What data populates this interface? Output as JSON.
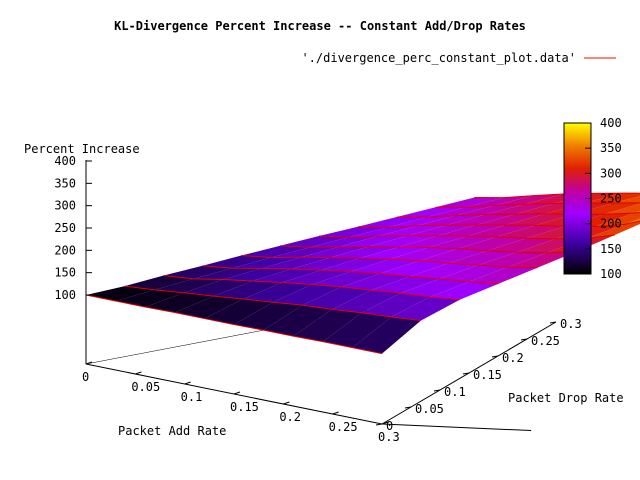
{
  "chart_data": {
    "type": "surface",
    "title": "KL-Divergence Percent Increase -- Constant Add/Drop Rates",
    "legend_label": "'./divergence_perc_constant_plot.data'",
    "legend_color": "#ff0000",
    "xlabel": "Packet Add Rate",
    "ylabel": "Packet Drop Rate",
    "zlabel": "Percent Increase",
    "xlim": [
      0,
      0.3
    ],
    "ylim": [
      0,
      0.3
    ],
    "zlim": [
      0,
      400
    ],
    "x_ticks": [
      "0",
      "0.05",
      "0.1",
      "0.15",
      "0.2",
      "0.25",
      "0.3"
    ],
    "y_ticks": [
      "0",
      "0.05",
      "0.1",
      "0.15",
      "0.2",
      "0.25",
      "0.3"
    ],
    "z_ticks": [
      "100",
      "150",
      "200",
      "250",
      "300",
      "350",
      "400"
    ],
    "colorbar_ticks": [
      "100",
      "150",
      "200",
      "250",
      "300",
      "350",
      "400"
    ],
    "colorbar_range": [
      100,
      400
    ],
    "grid_rows_y": [
      0,
      0.025,
      0.05,
      0.075,
      0.1,
      0.125,
      0.15,
      0.175,
      0.2,
      0.225,
      0.25
    ],
    "grid_cols_x": [
      0,
      0.03,
      0.06,
      0.09,
      0.12,
      0.15,
      0.18,
      0.21,
      0.24,
      0.27,
      0.3
    ],
    "z": [
      [
        100,
        100,
        100,
        101,
        101,
        101,
        102,
        102,
        103,
        103,
        103
      ],
      [
        112,
        117,
        124,
        130,
        137,
        143,
        150,
        154,
        160,
        164,
        169
      ],
      [
        128,
        134,
        146,
        156,
        166,
        175,
        183,
        189,
        196,
        201,
        208
      ],
      [
        142,
        150,
        163,
        175,
        186,
        196,
        205,
        212,
        220,
        227,
        236
      ],
      [
        157,
        166,
        180,
        193,
        205,
        216,
        226,
        234,
        243,
        252,
        264
      ],
      [
        171,
        181,
        196,
        210,
        222,
        234,
        245,
        254,
        264,
        276,
        292
      ],
      [
        185,
        196,
        212,
        226,
        239,
        252,
        264,
        274,
        286,
        300,
        322
      ],
      [
        198,
        210,
        227,
        242,
        256,
        269,
        282,
        293,
        306,
        324,
        352
      ],
      [
        212,
        225,
        242,
        258,
        272,
        286,
        299,
        312,
        328,
        348,
        382
      ],
      [
        226,
        239,
        257,
        273,
        288,
        302,
        316,
        330,
        348,
        372,
        400
      ],
      [
        240,
        253,
        271,
        288,
        303,
        317,
        330,
        344,
        364,
        390,
        420
      ]
    ]
  }
}
